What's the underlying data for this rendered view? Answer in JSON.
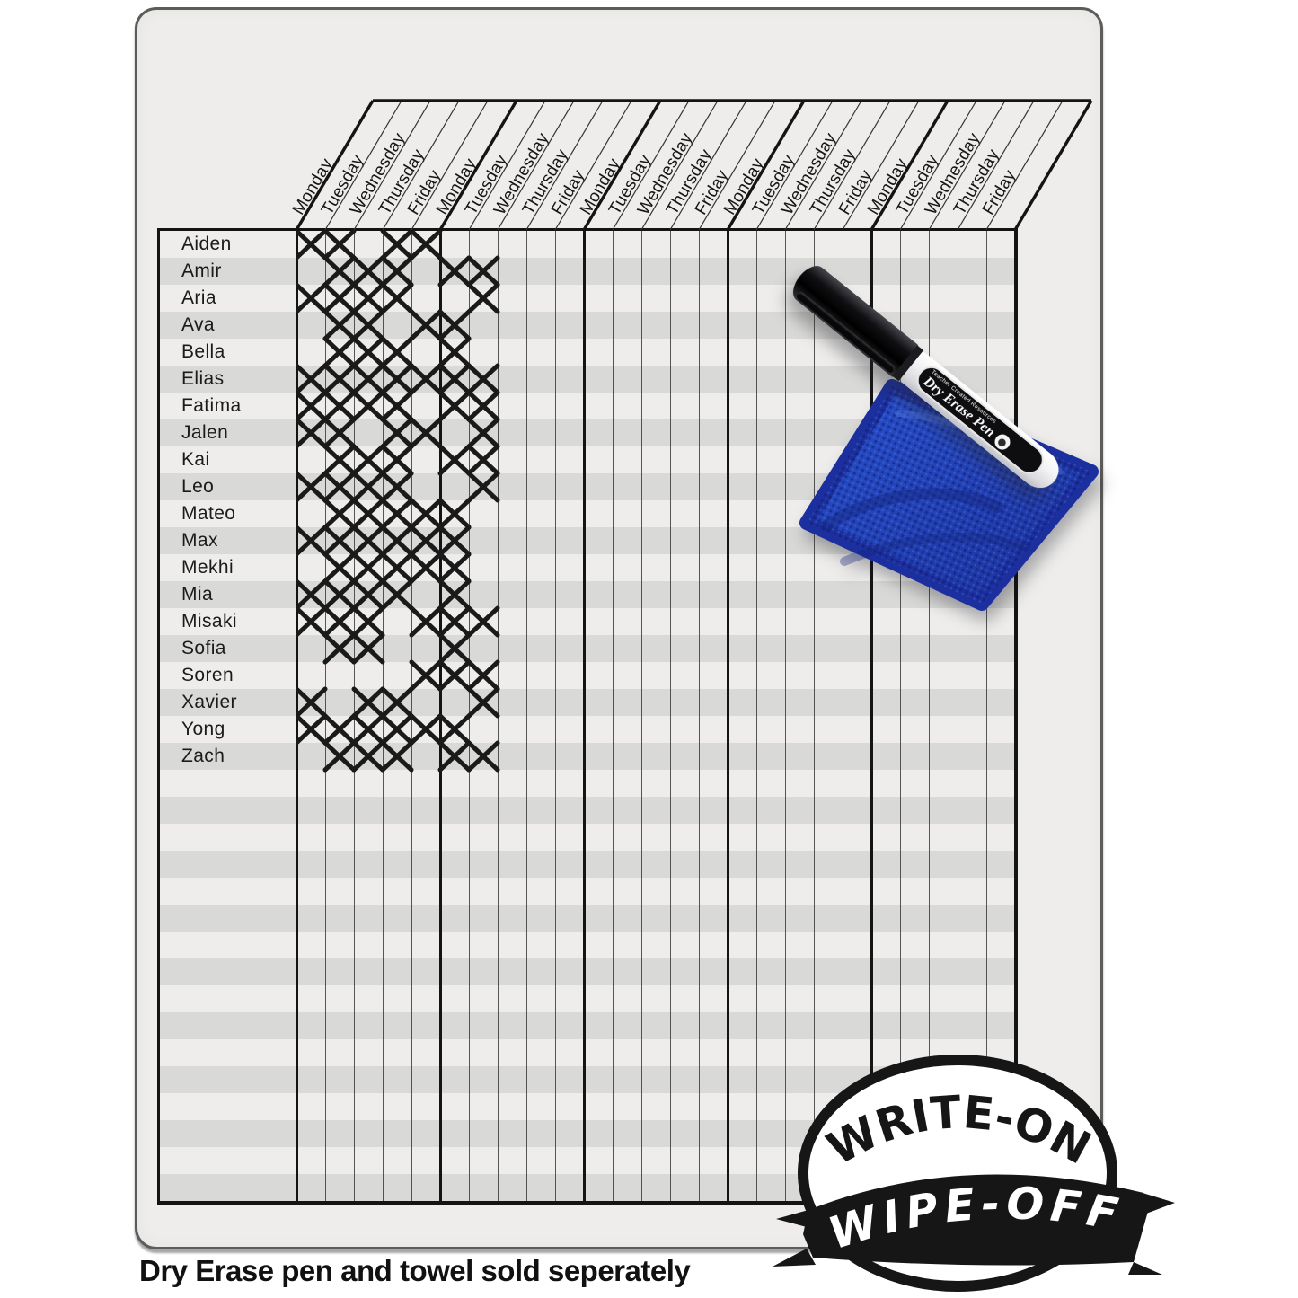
{
  "product": {
    "caption": "Dry Erase pen and towel sold seperately",
    "badge": {
      "top": "WRITE-ON",
      "bottom": "WIPE-OFF"
    },
    "pen_label": {
      "brand": "Teacher Created Resources",
      "title": "Dry Erase Pen"
    }
  },
  "chart": {
    "weeks": 5,
    "days_per_week": [
      "Monday",
      "Tuesday",
      "Wednesday",
      "Thursday",
      "Friday"
    ],
    "total_day_columns": 25,
    "total_rows": 36,
    "students": [
      {
        "name": "Aiden",
        "marks": [
          1,
          1,
          0,
          1,
          1,
          0,
          0
        ]
      },
      {
        "name": "Amir",
        "marks": [
          0,
          1,
          1,
          1,
          0,
          1,
          1
        ]
      },
      {
        "name": "Aria",
        "marks": [
          1,
          1,
          1,
          1,
          0,
          0,
          1
        ]
      },
      {
        "name": "Ava",
        "marks": [
          0,
          1,
          1,
          0,
          1,
          1,
          0
        ]
      },
      {
        "name": "Bella",
        "marks": [
          0,
          1,
          1,
          1,
          0,
          1,
          0
        ]
      },
      {
        "name": "Elias",
        "marks": [
          1,
          1,
          1,
          1,
          1,
          1,
          1
        ]
      },
      {
        "name": "Fatima",
        "marks": [
          1,
          1,
          1,
          1,
          0,
          1,
          1
        ]
      },
      {
        "name": "Jalen",
        "marks": [
          1,
          1,
          0,
          1,
          1,
          0,
          1
        ]
      },
      {
        "name": "Kai",
        "marks": [
          0,
          1,
          1,
          1,
          0,
          1,
          1
        ]
      },
      {
        "name": "Leo",
        "marks": [
          1,
          1,
          1,
          1,
          0,
          0,
          1
        ]
      },
      {
        "name": "Mateo",
        "marks": [
          0,
          1,
          1,
          1,
          1,
          1,
          0
        ]
      },
      {
        "name": "Max",
        "marks": [
          1,
          1,
          1,
          1,
          1,
          1,
          0
        ]
      },
      {
        "name": "Mekhi",
        "marks": [
          0,
          1,
          1,
          1,
          1,
          1,
          0
        ]
      },
      {
        "name": "Mia",
        "marks": [
          1,
          1,
          1,
          1,
          0,
          1,
          0
        ]
      },
      {
        "name": "Misaki",
        "marks": [
          1,
          1,
          1,
          0,
          1,
          1,
          1
        ]
      },
      {
        "name": "Sofia",
        "marks": [
          0,
          1,
          1,
          0,
          0,
          1,
          0
        ]
      },
      {
        "name": "Soren",
        "marks": [
          0,
          0,
          0,
          0,
          1,
          1,
          1
        ]
      },
      {
        "name": "Xavier",
        "marks": [
          1,
          0,
          1,
          1,
          0,
          0,
          1
        ]
      },
      {
        "name": "Yong",
        "marks": [
          1,
          1,
          1,
          1,
          1,
          1,
          0
        ]
      },
      {
        "name": "Zach",
        "marks": [
          0,
          1,
          1,
          1,
          0,
          1,
          1
        ]
      }
    ]
  },
  "colors": {
    "board_bg": "#eeedeb",
    "stripe": "#d9d9d7",
    "grid_line": "#343432",
    "border": "#141414",
    "mark": "#1a1a1a",
    "towel_blue": "#2c50cf",
    "towel_dark": "#16288f",
    "badge_black": "#161616"
  }
}
